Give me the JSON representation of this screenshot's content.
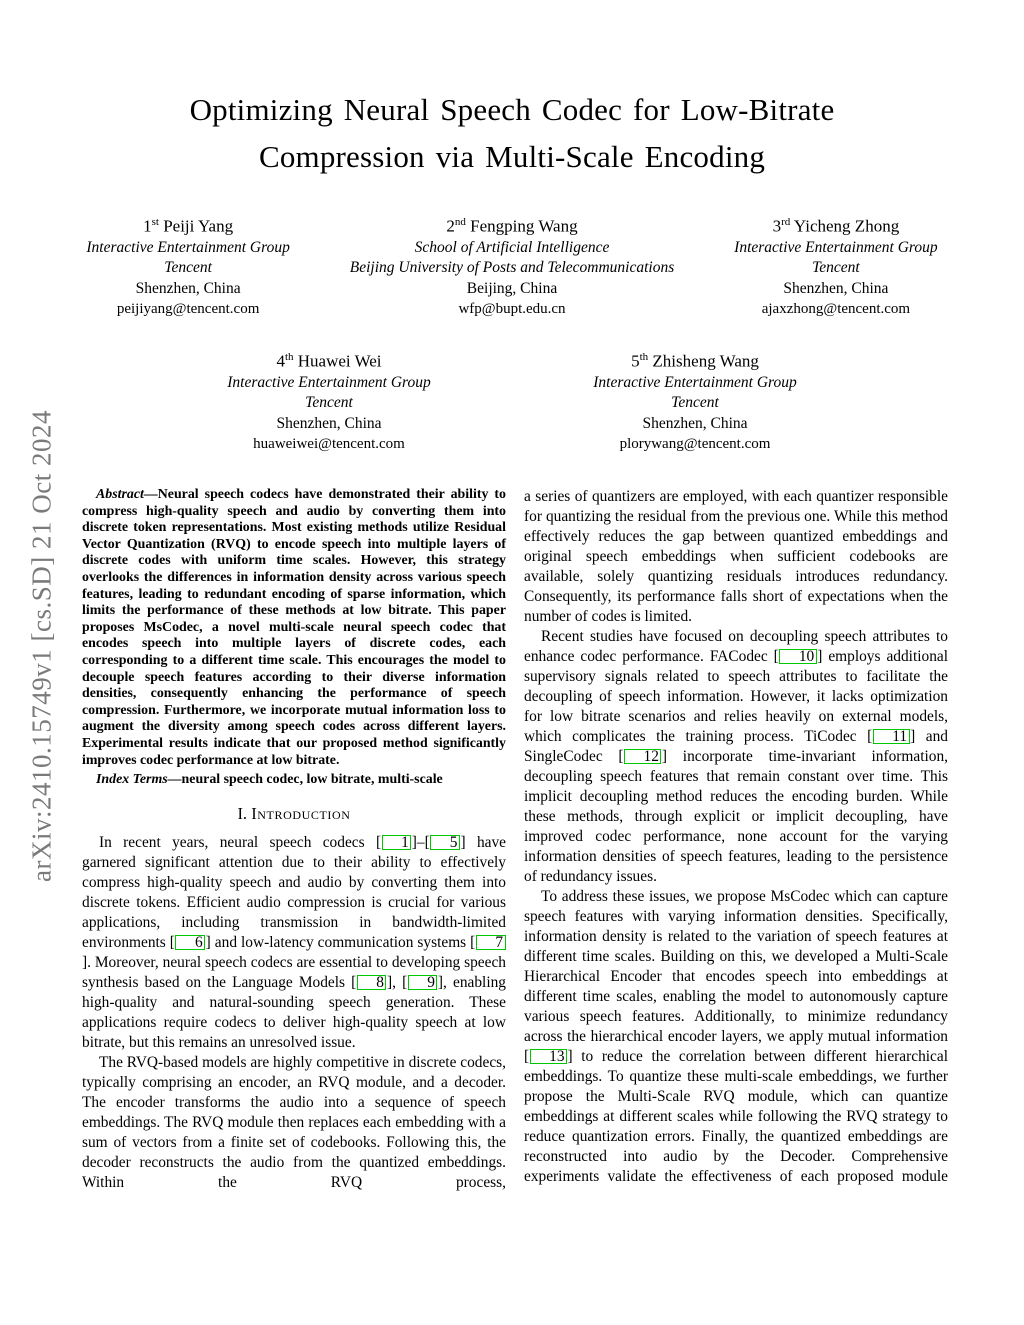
{
  "arxiv_stamp": "arXiv:2410.15749v1  [cs.SD]  21 Oct 2024",
  "title": {
    "line1": "Optimizing Neural Speech Codec for Low-Bitrate",
    "line2": "Compression via Multi-Scale Encoding"
  },
  "authors": [
    {
      "order": "1",
      "suffix": "st",
      "name": "Peiji Yang",
      "affiliation": [
        "Interactive Entertainment Group",
        "Tencent"
      ],
      "city": "Shenzhen, China",
      "email": "peijiyang@tencent.com"
    },
    {
      "order": "2",
      "suffix": "nd",
      "name": "Fengping Wang",
      "affiliation": [
        "School of Artificial Intelligence",
        "Beijing University of Posts and Telecommunications"
      ],
      "city": "Beijing, China",
      "email": "wfp@bupt.edu.cn"
    },
    {
      "order": "3",
      "suffix": "rd",
      "name": "Yicheng Zhong",
      "affiliation": [
        "Interactive Entertainment Group",
        "Tencent"
      ],
      "city": "Shenzhen, China",
      "email": "ajaxzhong@tencent.com"
    },
    {
      "order": "4",
      "suffix": "th",
      "name": "Huawei Wei",
      "affiliation": [
        "Interactive Entertainment Group",
        "Tencent"
      ],
      "city": "Shenzhen, China",
      "email": "huaweiwei@tencent.com"
    },
    {
      "order": "5",
      "suffix": "th",
      "name": "Zhisheng Wang",
      "affiliation": [
        "Interactive Entertainment Group",
        "Tencent"
      ],
      "city": "Shenzhen, China",
      "email": "plorywang@tencent.com"
    }
  ],
  "abstract": {
    "lead": "Abstract—",
    "text": "Neural speech codecs have demonstrated their ability to compress high-quality speech and audio by converting them into discrete token representations. Most existing methods utilize Residual Vector Quantization (RVQ) to encode speech into multiple layers of discrete codes with uniform time scales. However, this strategy overlooks the differences in information density across various speech features, leading to redundant encoding of sparse information, which limits the performance of these methods at low bitrate. This paper proposes MsCodec, a novel multi-scale neural speech codec that encodes speech into multiple layers of discrete codes, each corresponding to a different time scale. This encourages the model to decouple speech features according to their diverse information densities, consequently enhancing the performance of speech compression. Furthermore, we incorporate mutual information loss to augment the diversity among speech codes across different layers. Experimental results indicate that our proposed method significantly improves codec performance at low bitrate."
  },
  "index_terms": {
    "lead": "Index Terms—",
    "text": "neural speech codec, low bitrate, multi-scale"
  },
  "section1": {
    "number": "I.",
    "title": "Introduction"
  },
  "paragraphs": {
    "left": [
      {
        "indent": true,
        "cont": false,
        "text": "In recent years, neural speech codecs [[1]]–[[5]] have garnered significant attention due to their ability to effectively compress high-quality speech and audio by converting them into discrete tokens. Efficient audio compression is crucial for various applications, including transmission in bandwidth-limited environments [[6]] and low-latency communication systems [[7]]. Moreover, neural speech codecs are essential to developing speech synthesis based on the Language Models [[8]], [[9]], enabling high-quality and natural-sounding speech generation. These applications require codecs to deliver high-quality speech at low bitrate, but this remains an unresolved issue."
      },
      {
        "indent": true,
        "cont": true,
        "text": "The RVQ-based models are highly competitive in discrete codecs, typically comprising an encoder, an RVQ module, and a decoder. The encoder transforms the audio into a sequence of speech embeddings. The RVQ module then replaces each embedding with a sum of vectors from a finite set of codebooks. Following this, the decoder reconstructs the audio from the quantized embeddings. Within the RVQ process,"
      }
    ],
    "right": [
      {
        "indent": false,
        "cont": false,
        "text": "a series of quantizers are employed, with each quantizer responsible for quantizing the residual from the previous one. While this method effectively reduces the gap between quantized embeddings and original speech embeddings when sufficient codebooks are available, solely quantizing residuals introduces redundancy. Consequently, its performance falls short of expectations when the number of codes is limited."
      },
      {
        "indent": true,
        "cont": false,
        "text": "Recent studies have focused on decoupling speech attributes to enhance codec performance. FACodec [[10]] employs additional supervisory signals related to speech attributes to facilitate the decoupling of speech information. However, it lacks optimization for low bitrate scenarios and relies heavily on external models, which complicates the training process. TiCodec [[11]] and SingleCodec [[12]] incorporate time-invariant information, decoupling speech features that remain constant over time. This implicit decoupling method reduces the encoding burden. While these methods, through explicit or implicit decoupling, have improved codec performance, none account for the varying information densities of speech features, leading to the persistence of redundancy issues."
      },
      {
        "indent": true,
        "cont": true,
        "text": "To address these issues, we propose MsCodec which can capture speech features with varying information densities. Specifically, information density is related to the variation of speech features at different time scales. Building on this, we developed a Multi-Scale Hierarchical Encoder that encodes speech into embeddings at different time scales, enabling the model to autonomously capture various speech features. Additionally, to minimize redundancy across the hierarchical encoder layers, we apply mutual information [[13]] to reduce the correlation between different hierarchical embeddings. To quantize these multi-scale embeddings, we further propose the Multi-Scale RVQ module, which can quantize embeddings at different scales while following the RVQ strategy to reduce quantization errors. Finally, the quantized embeddings are reconstructed into audio by the Decoder. Comprehensive experiments validate the effectiveness of each proposed module"
      }
    ]
  }
}
